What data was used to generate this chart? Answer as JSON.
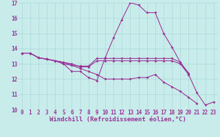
{
  "xlabel": "Windchill (Refroidissement éolien,°C)",
  "background_color": "#c8ecea",
  "grid_color": "#a8d8d8",
  "line_color": "#993399",
  "xlim": [
    -0.5,
    23.5
  ],
  "ylim": [
    10,
    17
  ],
  "xticks": [
    0,
    1,
    2,
    3,
    4,
    5,
    6,
    7,
    8,
    9,
    10,
    11,
    12,
    13,
    14,
    15,
    16,
    17,
    18,
    19,
    20,
    21,
    22,
    23
  ],
  "yticks": [
    10,
    11,
    12,
    13,
    14,
    15,
    16,
    17
  ],
  "lines": [
    [
      13.7,
      13.7,
      13.4,
      13.3,
      13.2,
      13.0,
      12.5,
      12.5,
      12.1,
      11.9,
      13.4,
      14.7,
      15.9,
      17.0,
      16.85,
      16.35,
      16.35,
      15.0,
      14.1,
      13.1,
      12.3,
      11.1,
      10.3,
      10.5
    ],
    [
      13.7,
      13.7,
      13.4,
      13.3,
      13.2,
      13.1,
      12.9,
      12.85,
      12.85,
      13.35,
      13.35,
      13.35,
      13.35,
      13.35,
      13.35,
      13.35,
      13.35,
      13.35,
      13.35,
      13.1,
      12.4,
      null,
      null,
      null
    ],
    [
      13.7,
      13.7,
      13.4,
      13.3,
      13.2,
      13.1,
      13.0,
      12.8,
      12.8,
      13.2,
      13.2,
      13.2,
      13.2,
      13.2,
      13.2,
      13.2,
      13.2,
      13.2,
      13.2,
      13.0,
      12.3,
      null,
      null,
      null
    ],
    [
      13.7,
      13.7,
      13.4,
      13.3,
      13.2,
      13.0,
      12.9,
      12.7,
      12.5,
      12.3,
      12.0,
      12.0,
      12.0,
      12.0,
      12.1,
      12.1,
      12.3,
      11.8,
      11.5,
      11.2,
      10.8,
      10.4,
      null,
      null
    ]
  ],
  "markersize": 2.0,
  "linewidth": 0.8,
  "xlabel_fontsize": 6.5,
  "tick_fontsize": 5.5
}
